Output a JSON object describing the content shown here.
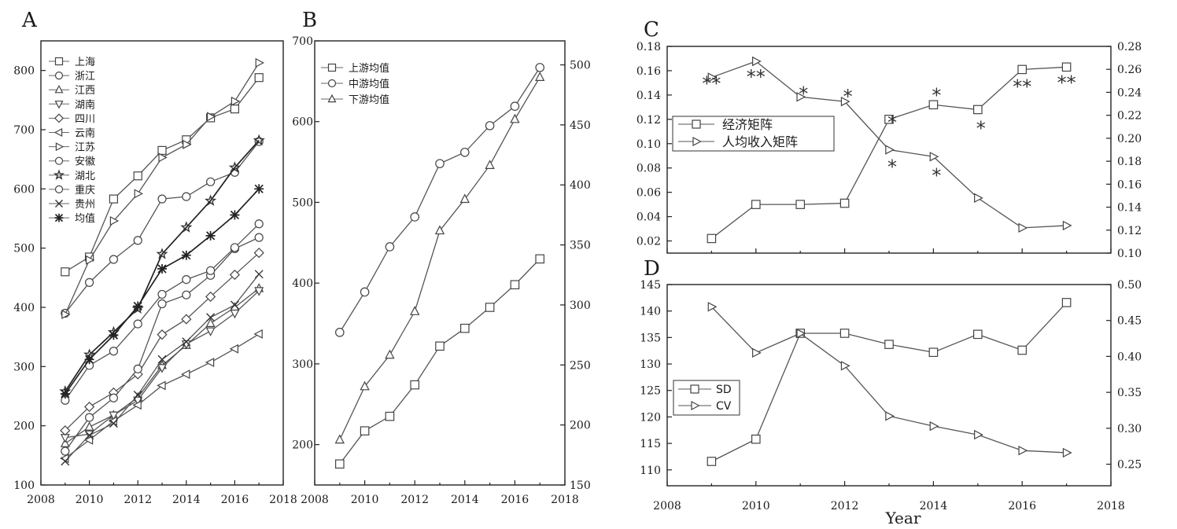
{
  "chart_data": [
    {
      "panel": "A",
      "type": "line",
      "x": [
        2009,
        2010,
        2011,
        2012,
        2013,
        2014,
        2015,
        2016,
        2017
      ],
      "xlim": [
        2008,
        2018
      ],
      "ylim": [
        100,
        850
      ],
      "xticks": [
        2008,
        2010,
        2012,
        2014,
        2016,
        2018
      ],
      "yticks": [
        100,
        200,
        300,
        400,
        500,
        600,
        700,
        800
      ],
      "legend_position": "top-left",
      "series": [
        {
          "name": "上海",
          "marker": "square",
          "values": [
            460,
            485,
            583,
            622,
            665,
            683,
            720,
            735,
            788
          ]
        },
        {
          "name": "浙江",
          "marker": "circle",
          "values": [
            390,
            442,
            481,
            513,
            583,
            587,
            612,
            628,
            680
          ]
        },
        {
          "name": "江西",
          "marker": "triangle-up",
          "values": [
            170,
            198,
            218,
            248,
            302,
            336,
            373,
            400,
            432
          ]
        },
        {
          "name": "湖南",
          "marker": "triangle-down",
          "values": [
            180,
            186,
            218,
            243,
            298,
            338,
            360,
            390,
            428
          ]
        },
        {
          "name": "四川",
          "marker": "diamond",
          "values": [
            192,
            232,
            256,
            287,
            354,
            380,
            418,
            455,
            492
          ]
        },
        {
          "name": "云南",
          "marker": "triangle-left",
          "values": [
            145,
            176,
            208,
            235,
            268,
            287,
            307,
            330,
            355
          ]
        },
        {
          "name": "江苏",
          "marker": "triangle-right",
          "values": [
            388,
            480,
            546,
            592,
            653,
            675,
            722,
            748,
            813
          ]
        },
        {
          "name": "安徽",
          "marker": "circle",
          "values": [
            157,
            214,
            247,
            296,
            406,
            421,
            454,
            499,
            518
          ]
        },
        {
          "name": "湖北",
          "marker": "star",
          "values": [
            258,
            320,
            358,
            398,
            490,
            535,
            580,
            636,
            682
          ]
        },
        {
          "name": "重庆",
          "marker": "circle",
          "values": [
            243,
            302,
            326,
            372,
            422,
            447,
            462,
            501,
            541
          ]
        },
        {
          "name": "贵州",
          "marker": "x",
          "values": [
            140,
            184,
            204,
            252,
            312,
            342,
            383,
            404,
            456
          ]
        },
        {
          "name": "均值",
          "marker": "asterisk",
          "values": [
            254,
            312,
            353,
            402,
            465,
            488,
            521,
            556,
            600
          ]
        }
      ]
    },
    {
      "panel": "B",
      "type": "line",
      "x": [
        2009,
        2010,
        2011,
        2012,
        2013,
        2014,
        2015,
        2016,
        2017
      ],
      "xlim": [
        2008,
        2018
      ],
      "ylim": [
        150,
        700
      ],
      "xticks": [
        2008,
        2010,
        2012,
        2014,
        2016,
        2018
      ],
      "yticks_left": [
        200,
        300,
        400,
        500,
        600,
        700
      ],
      "yticks_left_labels": [
        "200",
        "300",
        "400",
        "500",
        "600",
        "700"
      ],
      "yticks_right": [
        150,
        200,
        250,
        300,
        350,
        400,
        450,
        500
      ],
      "legend_position": "top-left",
      "series": [
        {
          "name": "上游均值",
          "marker": "square",
          "values": [
            176,
            217,
            235,
            274,
            322,
            344,
            370,
            398,
            430
          ]
        },
        {
          "name": "中游均值",
          "marker": "circle",
          "values": [
            339,
            389,
            445,
            482,
            548,
            562,
            595,
            619,
            667
          ]
        },
        {
          "name": "下游均值",
          "marker": "triangle-up",
          "values": [
            206,
            272,
            311,
            365,
            465,
            504,
            546,
            603,
            655
          ]
        }
      ]
    },
    {
      "panel": "C",
      "type": "line",
      "x": [
        2009,
        2010,
        2011,
        2012,
        2013,
        2014,
        2015,
        2016,
        2017
      ],
      "xlim": [
        2008,
        2018
      ],
      "ylim_left": [
        0.01,
        0.18
      ],
      "ylim_right": [
        0.1,
        0.28
      ],
      "xticks": [
        2008,
        2010,
        2012,
        2014,
        2016,
        2018
      ],
      "yticks_left": [
        "0.02",
        "0.04",
        "0.06",
        "0.08",
        "0.10",
        "0.12",
        "0.14",
        "0.16",
        "0.18"
      ],
      "yticks_right": [
        "0.10",
        "0.12",
        "0.14",
        "0.16",
        "0.18",
        "0.20",
        "0.22",
        "0.24",
        "0.26",
        "0.28"
      ],
      "legend_position": "middle-left",
      "series": [
        {
          "name": "经济矩阵",
          "marker": "square",
          "axis": "left",
          "values": [
            0.022,
            0.05,
            0.05,
            0.051,
            0.12,
            0.132,
            0.128,
            0.161,
            0.163
          ]
        },
        {
          "name": "人均收入矩阵",
          "marker": "triangle-right",
          "axis": "right",
          "values": [
            0.253,
            0.267,
            0.236,
            0.232,
            0.19,
            0.184,
            0.148,
            0.122,
            0.124
          ]
        }
      ],
      "significance": [
        {
          "x": 2009,
          "label": "**"
        },
        {
          "x": 2010,
          "label": "**"
        },
        {
          "x": 2011,
          "label": "*"
        },
        {
          "x": 2012,
          "label": "*"
        },
        {
          "x": 2013,
          "label": "*"
        },
        {
          "x": 2013,
          "label": "*"
        },
        {
          "x": 2014,
          "label": "*"
        },
        {
          "x": 2014,
          "label": "*"
        },
        {
          "x": 2015,
          "label": "*"
        },
        {
          "x": 2016,
          "label": "**"
        },
        {
          "x": 2017,
          "label": "**"
        }
      ]
    },
    {
      "panel": "D",
      "type": "line",
      "x": [
        2009,
        2010,
        2011,
        2012,
        2013,
        2014,
        2015,
        2016,
        2017
      ],
      "xlim": [
        2008,
        2018
      ],
      "xlabel": "Year",
      "ylim_left": [
        107,
        145
      ],
      "ylim_right": [
        0.22,
        0.5
      ],
      "xticks": [
        2008,
        2010,
        2012,
        2014,
        2016,
        2018
      ],
      "yticks_left": [
        "110",
        "115",
        "120",
        "125",
        "130",
        "135",
        "140",
        "145"
      ],
      "yticks_right": [
        "0.25",
        "0.30",
        "0.35",
        "0.40",
        "0.45",
        "0.50"
      ],
      "legend_position": "bottom-left",
      "series": [
        {
          "name": "SD",
          "marker": "square",
          "axis": "left",
          "values": [
            111.6,
            115.8,
            135.8,
            135.8,
            133.7,
            132.2,
            135.6,
            132.6,
            141.6
          ]
        },
        {
          "name": "CV",
          "marker": "triangle-right",
          "axis": "right",
          "values": [
            0.469,
            0.405,
            0.432,
            0.387,
            0.317,
            0.303,
            0.291,
            0.269,
            0.266
          ]
        }
      ]
    }
  ]
}
